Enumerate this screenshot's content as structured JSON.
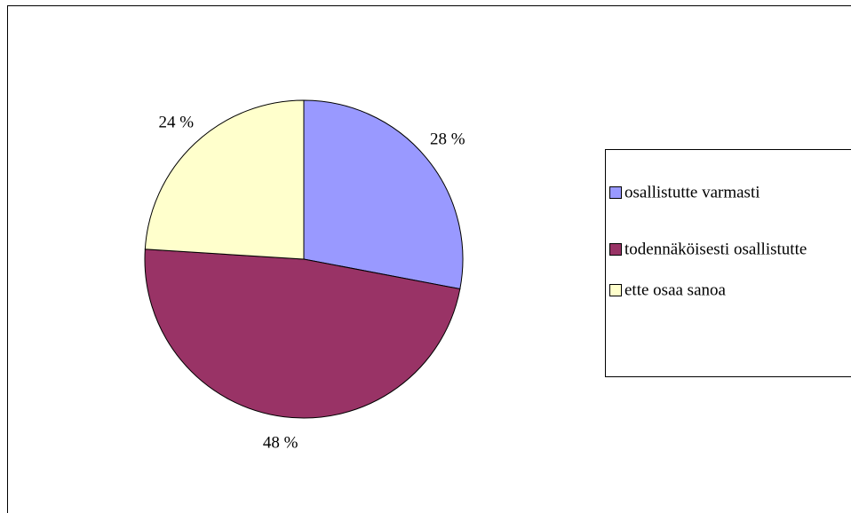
{
  "chart_data": {
    "type": "pie",
    "categories": [
      "osallistutte varmasti",
      "todennäköisesti osallistutte",
      "ette osaa sanoa"
    ],
    "values": [
      28,
      48,
      24
    ],
    "value_labels": [
      "28 %",
      "48 %",
      "24 %"
    ],
    "colors": [
      "#9999ff",
      "#993366",
      "#ffffcc"
    ],
    "legend": "right"
  }
}
